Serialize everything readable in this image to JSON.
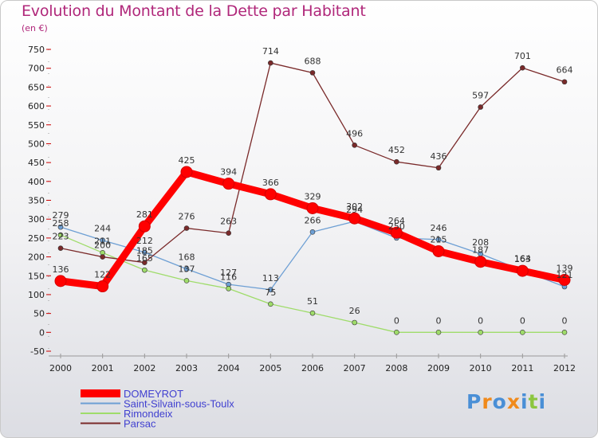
{
  "chart_data": {
    "type": "line",
    "title": "Evolution du Montant de la Dette par Habitant",
    "subtitle": "(en €)",
    "x": [
      "2000",
      "2001",
      "2002",
      "2003",
      "2004",
      "2005",
      "2006",
      "2007",
      "2008",
      "2009",
      "2010",
      "2011",
      "2012"
    ],
    "ylim": [
      -50,
      750
    ],
    "yticks": [
      -50,
      0,
      50,
      100,
      150,
      200,
      250,
      300,
      350,
      400,
      450,
      500,
      550,
      600,
      650,
      700,
      750
    ],
    "grid": false,
    "legend_position": "bottom-left",
    "series": [
      {
        "name": "DOMEYROT",
        "color": "#ff0000",
        "values": [
          136,
          122,
          281,
          425,
          394,
          366,
          329,
          302,
          264,
          215,
          187,
          163,
          139
        ]
      },
      {
        "name": "Saint-Silvain-sous-Toulx",
        "color": "#6d9fd4",
        "values": [
          279,
          244,
          212,
          168,
          127,
          113,
          266,
          294,
          250,
          246,
          208,
          164,
          121
        ]
      },
      {
        "name": "Rimondeix",
        "color": "#9fdc6a",
        "values": [
          258,
          211,
          165,
          137,
          116,
          75,
          51,
          26,
          0,
          0,
          0,
          0,
          0
        ]
      },
      {
        "name": "Parsac",
        "color": "#7a2a2a",
        "values": [
          223,
          200,
          185,
          276,
          263,
          714,
          688,
          496,
          452,
          436,
          597,
          701,
          664
        ]
      }
    ]
  },
  "logo": {
    "letters": [
      "P",
      "r",
      "o",
      "x",
      "i",
      "t",
      "i"
    ],
    "colors": [
      "#4a8fd6",
      "#f08a1c",
      "#4a8fd6",
      "#f08a1c",
      "#4a8fd6",
      "#8cc63f",
      "#4a8fd6"
    ]
  }
}
